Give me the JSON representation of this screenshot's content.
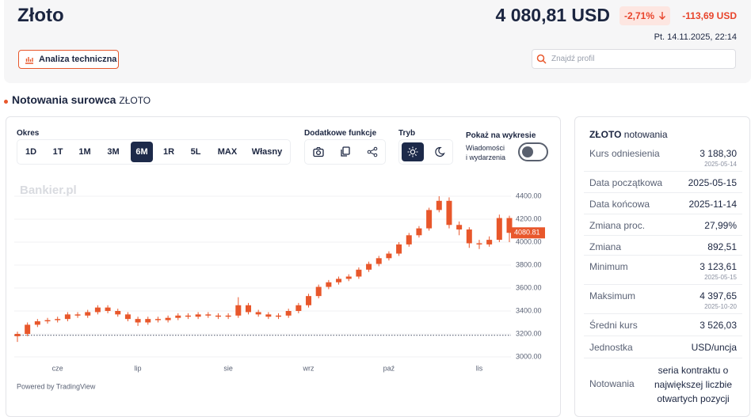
{
  "header": {
    "title": "Złoto",
    "price": "4 080,81 USD",
    "change_pct": "-2,71%",
    "change_abs": "-113,69 USD",
    "datetime": "Pt. 14.11.2025, 22:14",
    "button": "Analiza techniczna",
    "search_placeholder": "Znajdź profil"
  },
  "section": {
    "title": "Notowania surowca",
    "subtitle": "ZŁOTO"
  },
  "toolbar": {
    "period_label": "Okres",
    "periods": [
      "1D",
      "1T",
      "1M",
      "3M",
      "6M",
      "1R",
      "5L",
      "MAX",
      "Własny"
    ],
    "selected_period": "6M",
    "functions_label": "Dodatkowe funkcje",
    "mode_label": "Tryb",
    "show_label": "Pokaż na wykresie",
    "news_toggle": [
      "Wiadomości",
      "i wydarzenia"
    ]
  },
  "chart_data": {
    "type": "candlestick",
    "watermark": "Bankier.pl",
    "credit": "Powered by TradingView",
    "color": "#e8572b",
    "categories": [
      null,
      null,
      null,
      null,
      "cze",
      null,
      null,
      null,
      null,
      null,
      null,
      null,
      "lip",
      null,
      null,
      null,
      null,
      null,
      null,
      null,
      null,
      "sie",
      null,
      null,
      null,
      null,
      null,
      null,
      null,
      "wrz",
      null,
      null,
      null,
      null,
      null,
      null,
      null,
      "paź",
      null,
      null,
      null,
      null,
      null,
      null,
      null,
      null,
      "lis",
      null,
      null,
      null
    ],
    "open": [
      3180,
      3200,
      3280,
      3310,
      3320,
      3330,
      3370,
      3360,
      3390,
      3430,
      3400,
      3370,
      3330,
      3300,
      3330,
      3320,
      3340,
      3360,
      3350,
      3370,
      3360,
      3350,
      3360,
      3450,
      3390,
      3370,
      3350,
      3360,
      3400,
      3450,
      3530,
      3610,
      3650,
      3680,
      3700,
      3760,
      3810,
      3860,
      3900,
      3980,
      4060,
      4120,
      4280,
      4360,
      4150,
      4110,
      3990,
      3980,
      4020,
      4210
    ],
    "high": [
      3220,
      3300,
      3330,
      3340,
      3350,
      3390,
      3390,
      3410,
      3450,
      3450,
      3420,
      3390,
      3350,
      3350,
      3350,
      3360,
      3380,
      3380,
      3390,
      3390,
      3380,
      3380,
      3520,
      3470,
      3410,
      3390,
      3380,
      3420,
      3470,
      3550,
      3630,
      3670,
      3700,
      3720,
      3780,
      3830,
      3880,
      3920,
      4000,
      4080,
      4140,
      4300,
      4400,
      4390,
      4180,
      4130,
      4020,
      4050,
      4240,
      4230
    ],
    "low": [
      3130,
      3180,
      3260,
      3290,
      3300,
      3310,
      3340,
      3340,
      3370,
      3380,
      3350,
      3310,
      3270,
      3280,
      3300,
      3300,
      3320,
      3330,
      3330,
      3340,
      3330,
      3330,
      3340,
      3370,
      3350,
      3330,
      3330,
      3340,
      3380,
      3430,
      3510,
      3590,
      3630,
      3660,
      3680,
      3740,
      3790,
      3840,
      3880,
      3960,
      4040,
      4100,
      4260,
      4120,
      4060,
      3950,
      3940,
      3960,
      4000,
      4000
    ],
    "close": [
      3200,
      3280,
      3310,
      3320,
      3330,
      3370,
      3360,
      3390,
      3430,
      3400,
      3370,
      3330,
      3300,
      3330,
      3320,
      3340,
      3360,
      3350,
      3370,
      3360,
      3350,
      3360,
      3450,
      3390,
      3370,
      3350,
      3360,
      3400,
      3450,
      3530,
      3610,
      3650,
      3680,
      3700,
      3760,
      3810,
      3860,
      3900,
      3980,
      4060,
      4120,
      4280,
      4360,
      4150,
      4110,
      3990,
      3980,
      4020,
      4210,
      4080.81
    ],
    "ylim": [
      3000,
      4400
    ],
    "yticks": [
      {
        "value": 3000,
        "label": "3000.00"
      },
      {
        "value": 3200,
        "label": "3200.00"
      },
      {
        "value": 3400,
        "label": "3400.00"
      },
      {
        "value": 3600,
        "label": "3600.00"
      },
      {
        "value": 3800,
        "label": "3800.00"
      },
      {
        "value": 4000,
        "label": "4000.00"
      },
      {
        "value": 4200,
        "label": "4200.00"
      },
      {
        "value": 4400,
        "label": "4400.00"
      }
    ],
    "grid": true,
    "reference_line": 3188.3,
    "last_price": {
      "value": 4080.81,
      "label": "4080.81"
    }
  },
  "panel": {
    "title": "ZŁOTO",
    "subtitle": "notowania",
    "rows": [
      {
        "label": "Kurs odniesienia",
        "value": "3 188,30",
        "date": "2025-05-14"
      },
      {
        "label": "Data początkowa",
        "value": "2025-05-15"
      },
      {
        "label": "Data końcowa",
        "value": "2025-11-14"
      },
      {
        "label": "Zmiana proc.",
        "value": "27,99%"
      },
      {
        "label": "Zmiana",
        "value": "892,51"
      },
      {
        "label": "Minimum",
        "value": "3 123,61",
        "date": "2025-05-15"
      },
      {
        "label": "Maksimum",
        "value": "4 397,65",
        "date": "2025-10-20"
      },
      {
        "label": "Średni kurs",
        "value": "3 526,03"
      },
      {
        "label": "Jednostka",
        "value": "USD/uncja"
      },
      {
        "label": "Notowania",
        "value": "seria kontraktu o największej liczbie otwartych pozycji"
      }
    ]
  }
}
